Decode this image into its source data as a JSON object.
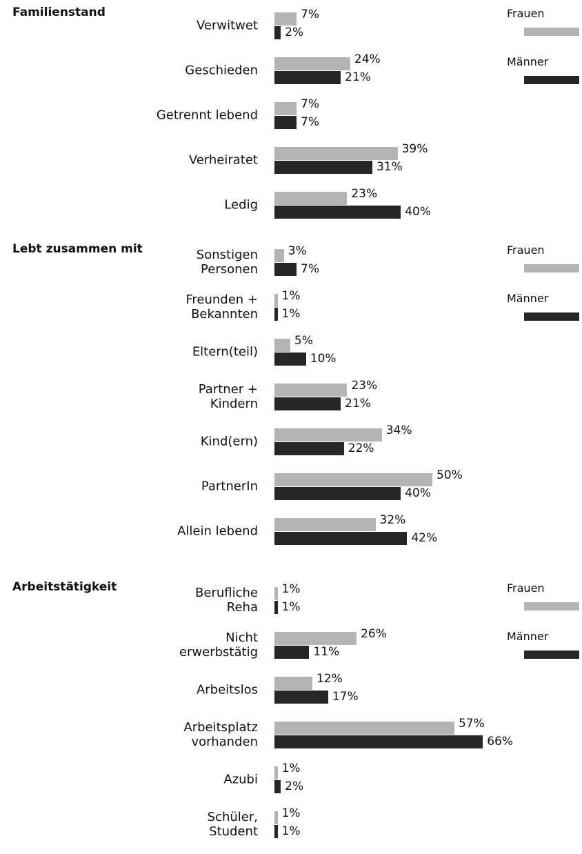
{
  "chart_data": [
    {
      "type": "hbar",
      "title": "Familienstand",
      "categories": [
        "Verwitwet",
        "Geschieden",
        "Getrennt lebend",
        "Verheiratet",
        "Ledig"
      ],
      "series": [
        {
          "name": "Frauen",
          "color": "#b4b4b4",
          "values": [
            7,
            24,
            7,
            39,
            23
          ],
          "value_labels": [
            "7%",
            "24%",
            "7%",
            "39%",
            "23%"
          ]
        },
        {
          "name": "Männer",
          "color": "#262626",
          "values": [
            2,
            21,
            7,
            31,
            40
          ],
          "value_labels": [
            "2%",
            "21%",
            "7%",
            "31%",
            "40%"
          ]
        }
      ]
    },
    {
      "type": "hbar",
      "title": "Lebt zusammen mit",
      "categories": [
        "Sonstigen\nPersonen",
        "Freunden +\nBekannten",
        "Eltern(teil)",
        "Partner +\nKindern",
        "Kind(ern)",
        "PartnerIn",
        "Allein lebend"
      ],
      "series": [
        {
          "name": "Frauen",
          "color": "#b4b4b4",
          "values": [
            3,
            1,
            5,
            23,
            34,
            50,
            32
          ],
          "value_labels": [
            "3%",
            "1%",
            "5%",
            "23%",
            "34%",
            "50%",
            "32%"
          ]
        },
        {
          "name": "Männer",
          "color": "#262626",
          "values": [
            7,
            1,
            10,
            21,
            22,
            40,
            42
          ],
          "value_labels": [
            "7%",
            "1%",
            "10%",
            "21%",
            "22%",
            "40%",
            "42%"
          ]
        }
      ]
    },
    {
      "type": "hbar",
      "title": "Arbeitstätigkeit",
      "categories": [
        "Berufliche\nReha",
        "Nicht\nerwerbstätig",
        "Arbeitslos",
        "Arbeitsplatz\nvorhanden",
        "Azubi",
        "Schüler,\nStudent"
      ],
      "series": [
        {
          "name": "Frauen",
          "color": "#b4b4b4",
          "values": [
            1,
            26,
            12,
            57,
            1,
            1
          ],
          "value_labels": [
            "1%",
            "26%",
            "12%",
            "57%",
            "1%",
            "1%"
          ]
        },
        {
          "name": "Männer",
          "color": "#262626",
          "values": [
            1,
            11,
            17,
            66,
            2,
            1
          ],
          "value_labels": [
            "1%",
            "11%",
            "17%",
            "66%",
            "2%",
            "1%"
          ]
        }
      ]
    }
  ]
}
